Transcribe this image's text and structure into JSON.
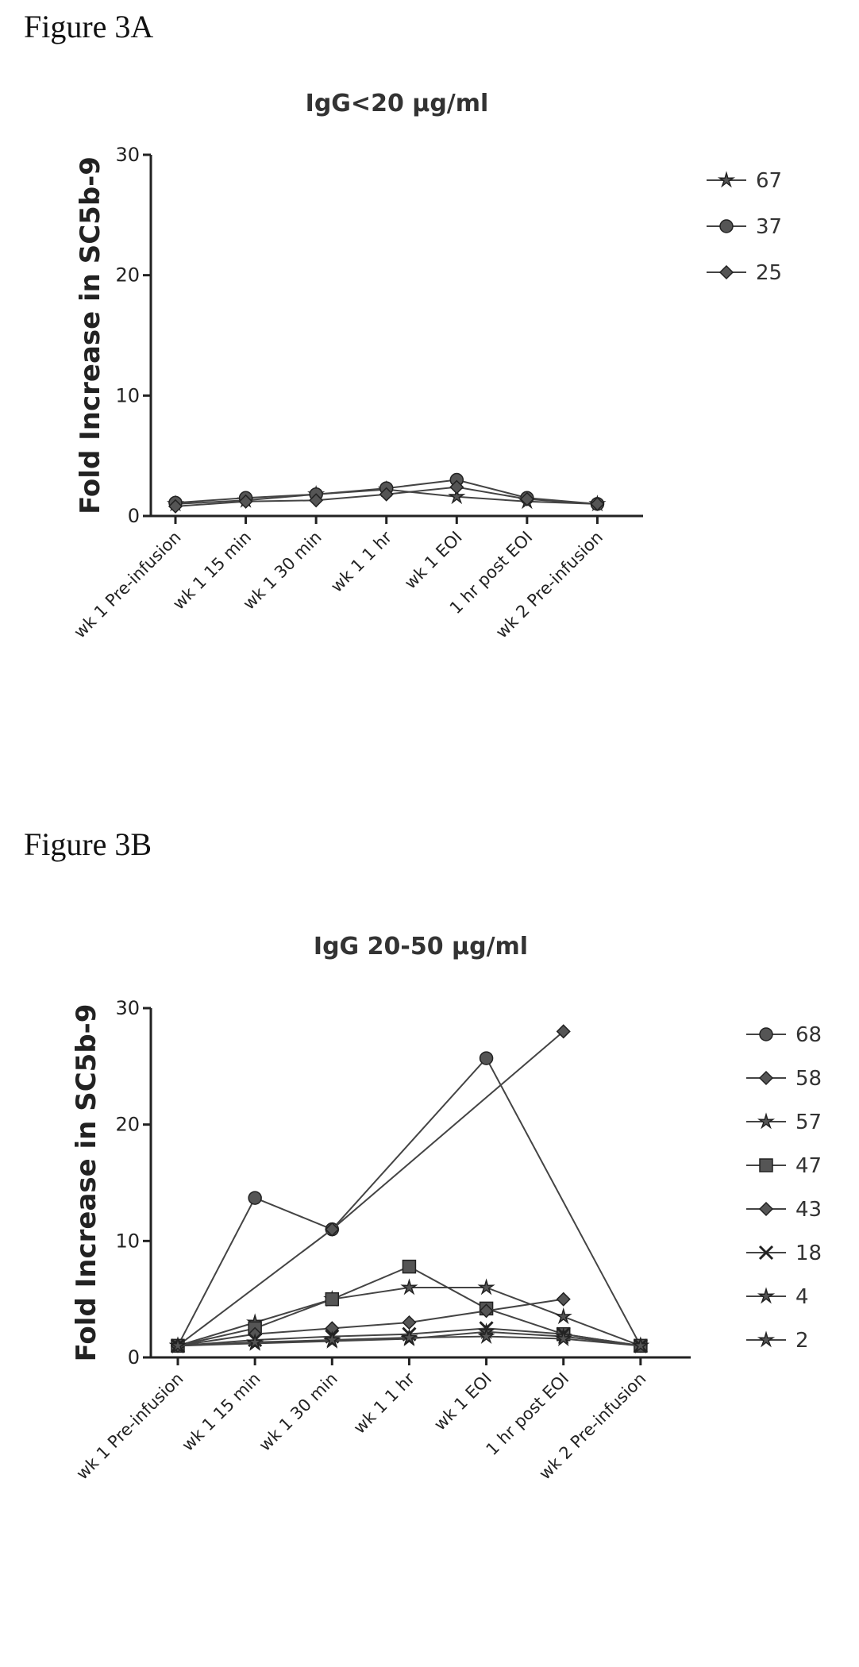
{
  "figures": [
    {
      "label": "Figure 3A"
    },
    {
      "label": "Figure 3B"
    }
  ],
  "chart_data": [
    {
      "type": "line",
      "title": "IgG<20 µg/ml",
      "ylabel": "Fold Increase in SC5b-9",
      "xlabel": "",
      "categories": [
        "wk 1 Pre-infusion",
        "wk 1 15 min",
        "wk 1 30 min",
        "wk 1 1 hr",
        "wk 1 EOI",
        "1 hr post EOI",
        "wk 2 Pre-infusion"
      ],
      "ylim": [
        0,
        30
      ],
      "yticks": [
        0,
        10,
        20,
        30
      ],
      "legend_position": "top-right",
      "grid": false,
      "series": [
        {
          "name": "67",
          "marker": "star",
          "values": [
            1,
            1.3,
            1.8,
            2.2,
            1.6,
            1.2,
            1
          ]
        },
        {
          "name": "37",
          "marker": "circle",
          "values": [
            1.1,
            1.5,
            1.8,
            2.3,
            3.0,
            1.5,
            1
          ]
        },
        {
          "name": "25",
          "marker": "diamond",
          "values": [
            0.8,
            1.2,
            1.3,
            1.8,
            2.4,
            1.4,
            1
          ]
        }
      ]
    },
    {
      "type": "line",
      "title": "IgG 20-50 µg/ml",
      "ylabel": "Fold Increase in SC5b-9",
      "xlabel": "",
      "categories": [
        "wk 1 Pre-infusion",
        "wk 1 15 min",
        "wk 1 30 min",
        "wk 1 1 hr",
        "wk 1 EOI",
        "1 hr post EOI",
        "wk 2 Pre-infusion"
      ],
      "ylim": [
        0,
        30
      ],
      "yticks": [
        0,
        10,
        20,
        30
      ],
      "legend_position": "top-right",
      "grid": false,
      "series": [
        {
          "name": "68",
          "marker": "circle",
          "values": [
            1,
            13.7,
            11,
            null,
            25.7,
            null,
            1
          ]
        },
        {
          "name": "58",
          "marker": "diamond",
          "values": [
            1,
            null,
            11,
            null,
            null,
            28,
            null
          ]
        },
        {
          "name": "57",
          "marker": "star",
          "values": [
            1,
            3,
            5,
            6,
            6,
            3.5,
            1
          ]
        },
        {
          "name": "47",
          "marker": "square",
          "values": [
            1,
            2.5,
            5,
            7.8,
            4.2,
            2,
            1
          ]
        },
        {
          "name": "43",
          "marker": "diamond",
          "values": [
            1,
            2,
            2.5,
            3,
            4,
            5,
            null
          ]
        },
        {
          "name": "18",
          "marker": "x",
          "values": [
            1,
            1.5,
            1.8,
            2,
            2.5,
            2,
            1
          ]
        },
        {
          "name": "4",
          "marker": "star",
          "values": [
            1,
            1.2,
            1.4,
            1.6,
            2.2,
            1.8,
            1
          ]
        },
        {
          "name": "2",
          "marker": "star",
          "values": [
            1,
            1.3,
            1.5,
            1.7,
            1.8,
            1.6,
            1
          ]
        }
      ]
    }
  ]
}
